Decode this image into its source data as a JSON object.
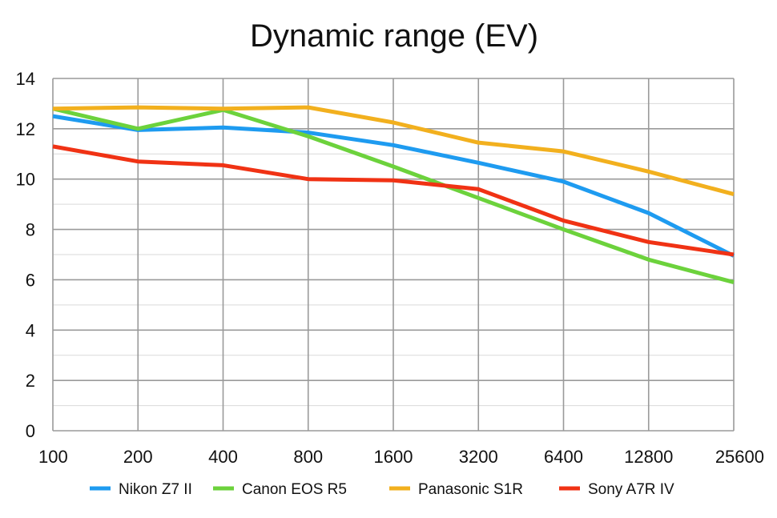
{
  "chart_data": {
    "type": "line",
    "title": "Dynamic range (EV)",
    "xlabel": "",
    "ylabel": "",
    "x_scale": "log2",
    "categories": [
      "100",
      "200",
      "400",
      "800",
      "1600",
      "3200",
      "6400",
      "12800",
      "25600"
    ],
    "yticks": [
      "0",
      "2",
      "4",
      "6",
      "8",
      "10",
      "12",
      "14"
    ],
    "ylim": [
      0,
      14
    ],
    "y_minor_step": 1,
    "grid": true,
    "legend_position": "bottom",
    "series": [
      {
        "name": "Nikon Z7 II",
        "color": "#1e9bf0",
        "values": [
          12.5,
          11.95,
          12.05,
          11.85,
          11.35,
          10.65,
          9.9,
          8.65,
          6.95
        ]
      },
      {
        "name": "Canon EOS R5",
        "color": "#6cd23c",
        "values": [
          12.8,
          12.0,
          12.75,
          11.7,
          10.5,
          9.25,
          8.0,
          6.8,
          5.9
        ]
      },
      {
        "name": "Panasonic S1R",
        "color": "#f2b01e",
        "values": [
          12.8,
          12.85,
          12.8,
          12.85,
          12.25,
          11.45,
          11.1,
          10.3,
          9.4
        ]
      },
      {
        "name": "Sony A7R IV",
        "color": "#f03214",
        "values": [
          11.3,
          10.7,
          10.55,
          10.0,
          9.95,
          9.6,
          8.35,
          7.5,
          7.0
        ]
      }
    ]
  }
}
